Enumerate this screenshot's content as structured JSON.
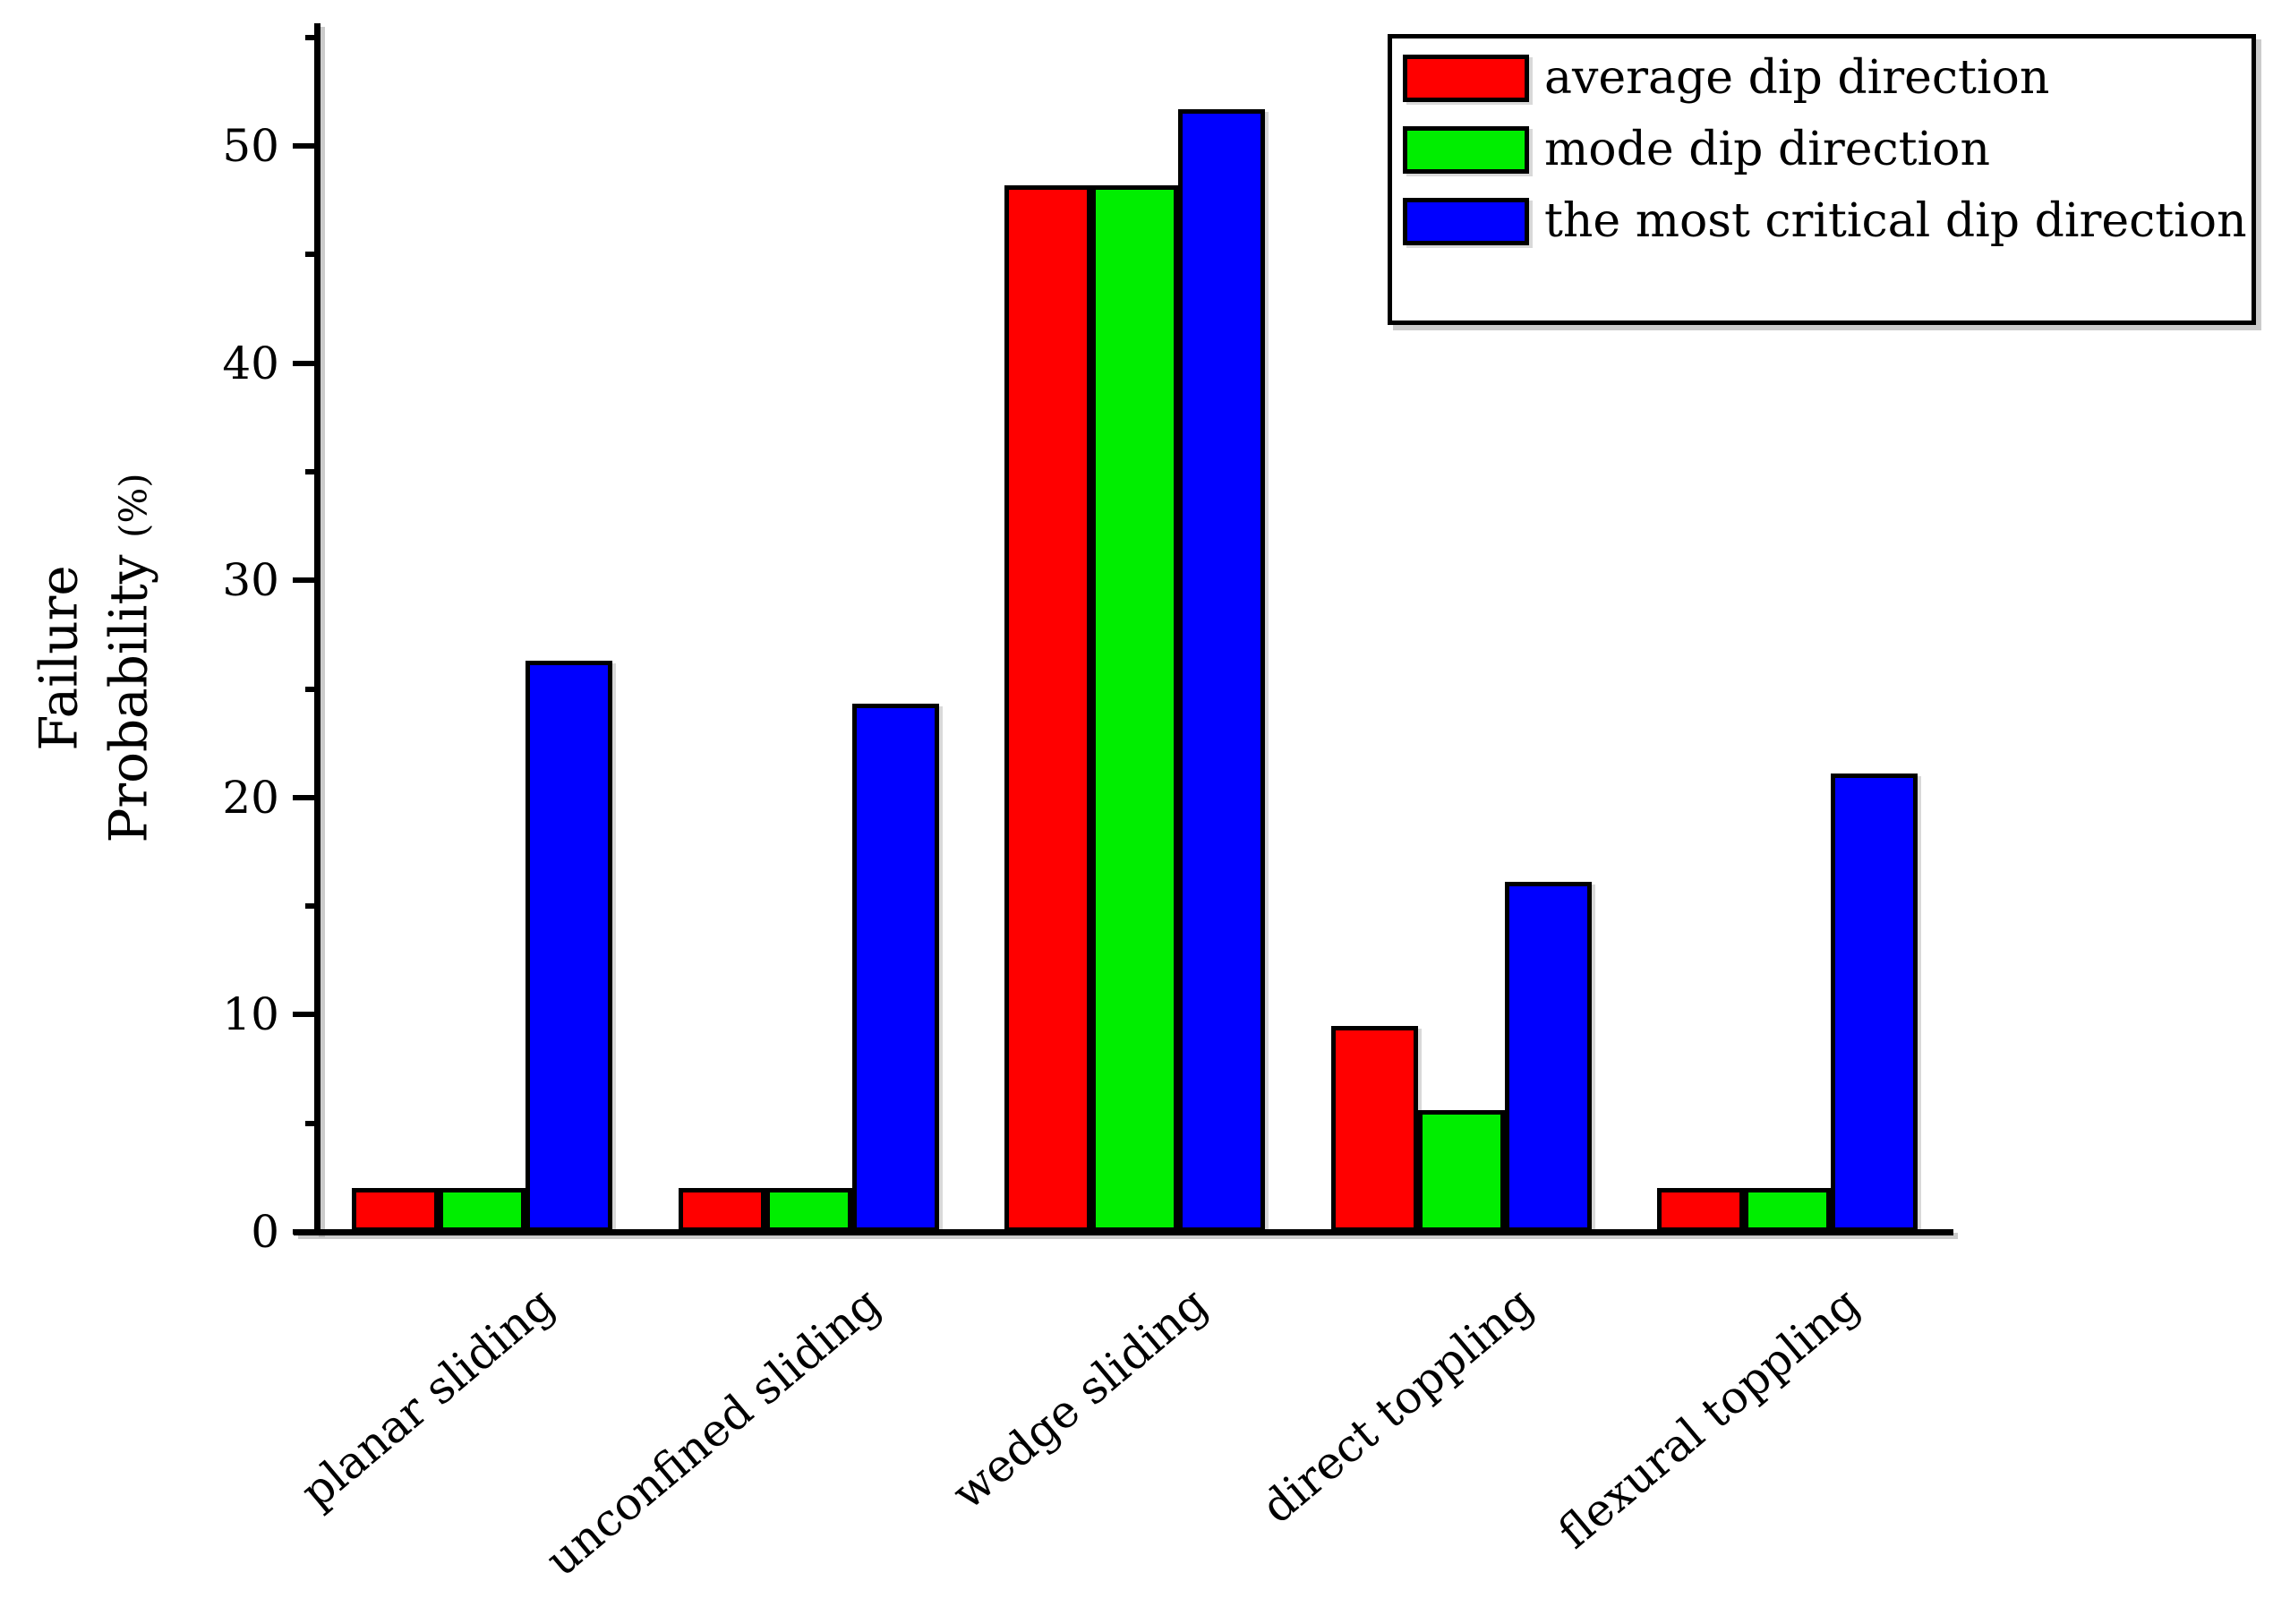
{
  "chart_data": {
    "type": "bar",
    "title": "",
    "categories": [
      "planar sliding",
      "unconfined sliding",
      "wedge sliding",
      "direct toppling",
      "flexural toppling"
    ],
    "series": [
      {
        "name": "average dip direction",
        "color": "#ff0000",
        "values": [
          2,
          2,
          48.2,
          9.5,
          2
        ]
      },
      {
        "name": "mode dip direction",
        "color": "#00ee00",
        "values": [
          2,
          2,
          48.2,
          5.6,
          2
        ]
      },
      {
        "name": "the most critical dip direction",
        "color": "#0000ff",
        "values": [
          26.3,
          24.3,
          51.7,
          16.1,
          21.1
        ]
      }
    ],
    "ylabel": {
      "line1": "Failure",
      "line2": "Probability",
      "unit": "(%)"
    },
    "yaxis": {
      "min": 0,
      "max": 55.6,
      "major_ticks": [
        0,
        10,
        20,
        30,
        40,
        50
      ],
      "minor_ticks": [
        5,
        15,
        25,
        35,
        45,
        55
      ]
    },
    "xlabel": "",
    "grid": false,
    "legend_position": "top-right",
    "axis_color": "#000000",
    "background_color": "#ffffff"
  }
}
